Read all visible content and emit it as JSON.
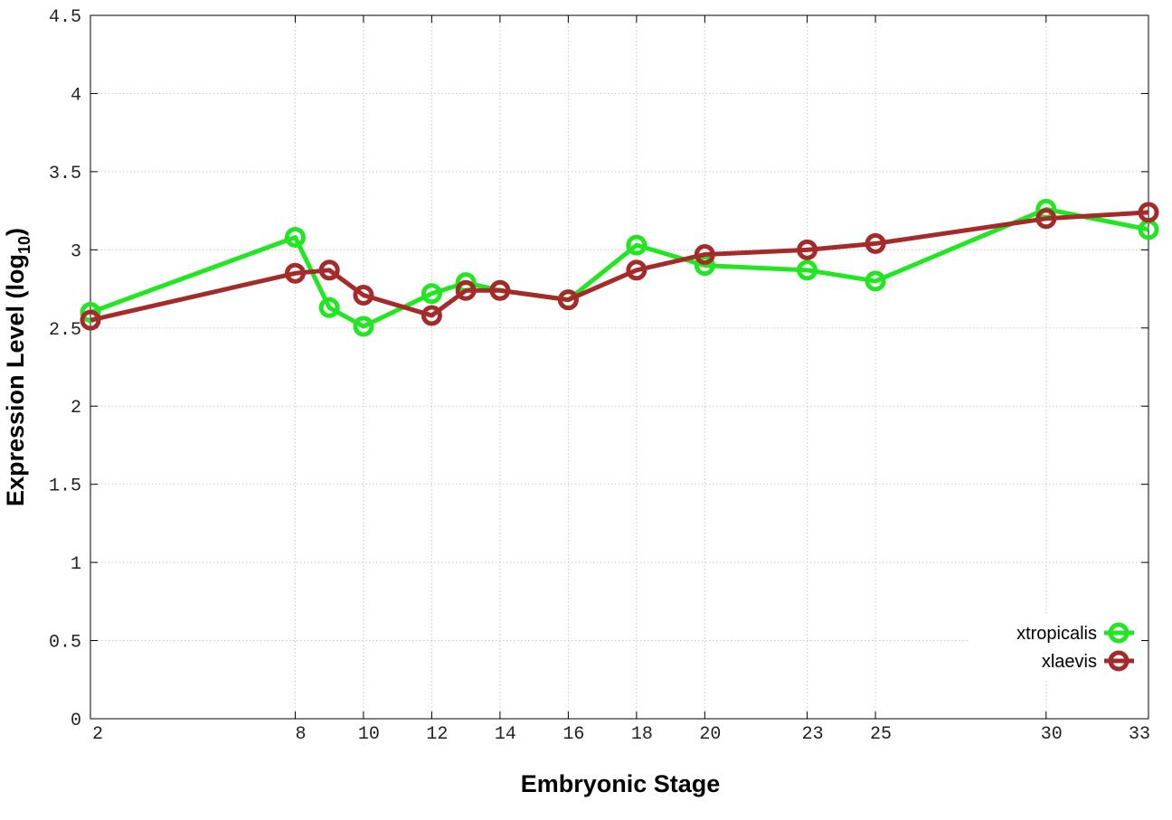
{
  "chart_data": {
    "type": "line",
    "xlabel": "Embryonic Stage",
    "ylabel_main": "Expression Level (log",
    "ylabel_sub": "10",
    "ylabel_close": ")",
    "ylim": [
      0,
      4.5
    ],
    "xlim": [
      2,
      33
    ],
    "y_ticks": [
      0,
      0.5,
      1,
      1.5,
      2,
      2.5,
      3,
      3.5,
      4,
      4.5
    ],
    "y_tick_labels": [
      "0",
      "0.5",
      "1",
      "1.5",
      "2",
      "2.5",
      "3",
      "3.5",
      "4",
      "4.5"
    ],
    "x_ticks": [
      2,
      8,
      10,
      12,
      14,
      16,
      18,
      20,
      23,
      25,
      30,
      33
    ],
    "x_tick_labels": [
      "2",
      "8",
      "10",
      "12",
      "14",
      "16",
      "18",
      "20",
      "23",
      "25",
      "30",
      "33"
    ],
    "x_gridlines": [
      8,
      10,
      12,
      14,
      16,
      18,
      20,
      23,
      25,
      30
    ],
    "grid": true,
    "legend_position": "bottom-right",
    "series": [
      {
        "name": "xtropicalis",
        "color": "#22e622",
        "x": [
          2,
          8,
          9,
          10,
          12,
          13,
          14,
          16,
          18,
          20,
          23,
          25,
          30,
          33
        ],
        "y": [
          2.6,
          3.08,
          2.63,
          2.51,
          2.72,
          2.79,
          2.74,
          2.68,
          3.03,
          2.9,
          2.87,
          2.8,
          3.26,
          3.13
        ]
      },
      {
        "name": "xlaevis",
        "color": "#a52a2a",
        "x": [
          2,
          8,
          9,
          10,
          12,
          13,
          14,
          16,
          18,
          20,
          23,
          25,
          30,
          33
        ],
        "y": [
          2.55,
          2.85,
          2.87,
          2.71,
          2.58,
          2.74,
          2.74,
          2.68,
          2.87,
          2.97,
          3.0,
          3.04,
          3.2,
          3.24
        ]
      }
    ]
  }
}
